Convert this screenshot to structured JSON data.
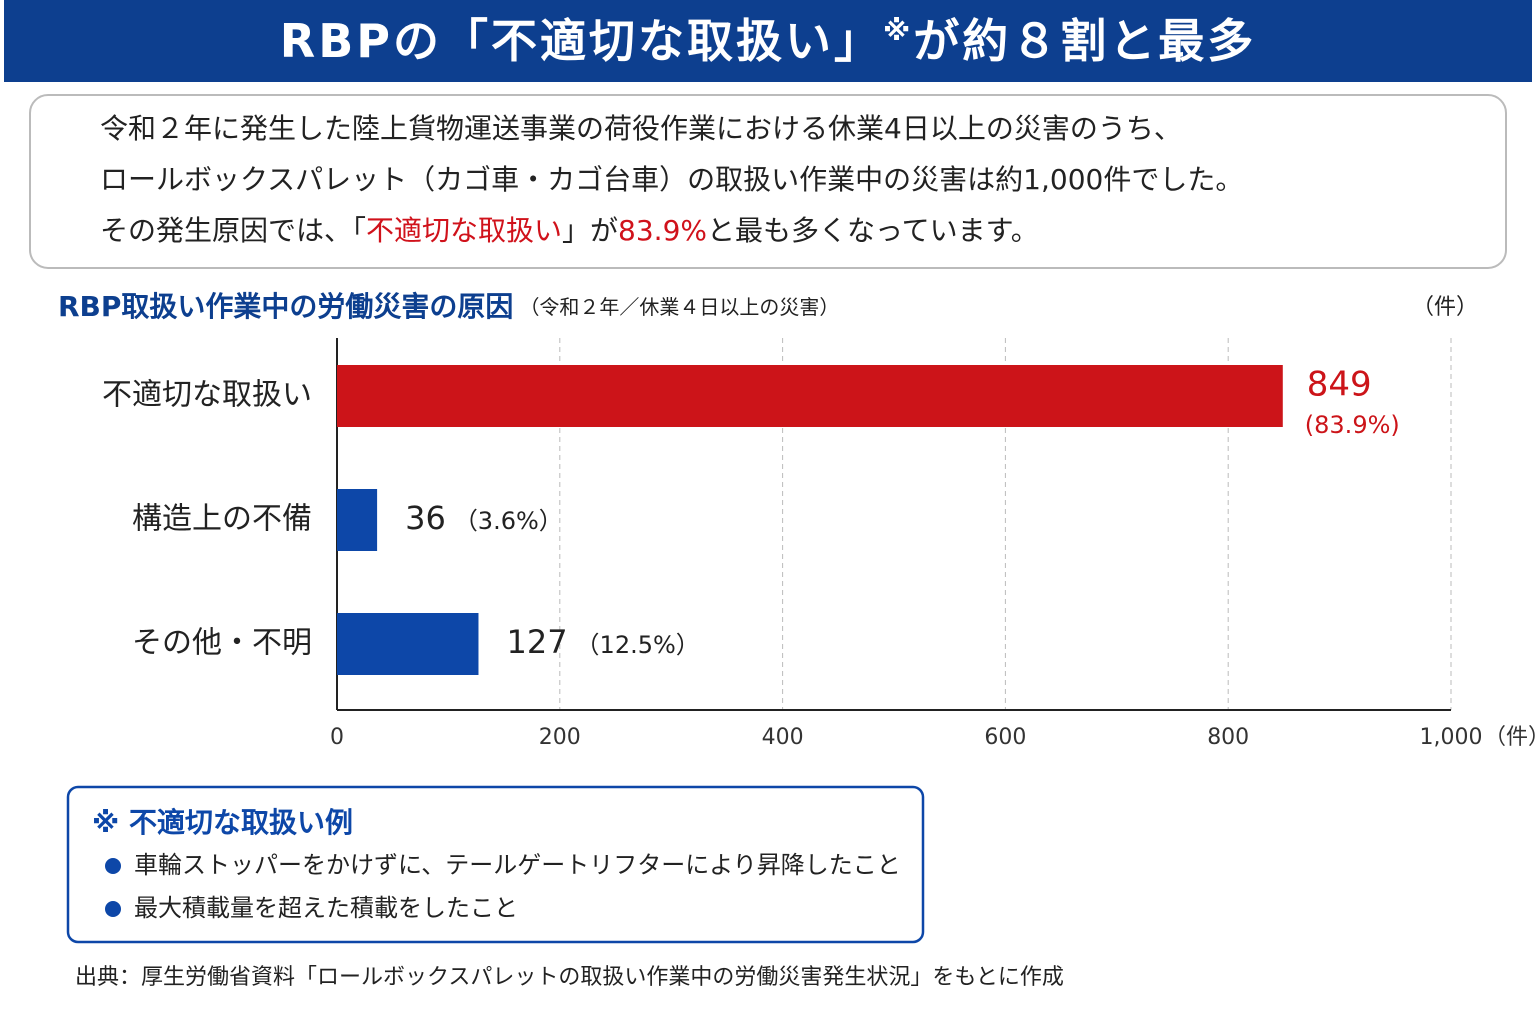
{
  "header": {
    "title": "RBPの「不適切な取扱い」",
    "title_mark": "※",
    "title_rest": "が約８割と最多"
  },
  "intro": {
    "lines": [
      [
        {
          "text": "令和２年に発生した陸上貨物運送事業の荷役作業における休業4日以上の災害のうち、"
        }
      ],
      [
        {
          "text": "ロールボックスパレット（カゴ車・カゴ台車）の取扱い作業中の災害は約1,000件でした。"
        }
      ],
      [
        {
          "text": "その発生原因では、「"
        },
        {
          "text": "不適切な取扱い",
          "red": true
        },
        {
          "text": "」が"
        },
        {
          "text": "83.9%",
          "red": true
        },
        {
          "text": "と最も多くなっています。"
        }
      ]
    ]
  },
  "chart_data": {
    "type": "hbar",
    "title": "RBP取扱い作業中の労働災害の原因",
    "subtitle": "（令和２年／休業４日以上の災害）",
    "unit_label": "（件）",
    "xlabel": "（件）",
    "categories": [
      "不適切な取扱い",
      "構造上の不備",
      "その他・不明"
    ],
    "values": [
      849,
      36,
      127
    ],
    "percent_labels": [
      "(83.9%)",
      "（3.6%）",
      "（12.5%）"
    ],
    "colors": [
      "#cc1419",
      "#0d47a8",
      "#0d47a8"
    ],
    "xlim": [
      0,
      1000
    ],
    "xticks": [
      0,
      200,
      400,
      600,
      800,
      {
        "value": 1000,
        "label": "1,000"
      }
    ],
    "grid": true
  },
  "note": {
    "title": "※ 不適切な取扱い例",
    "items": [
      "車輪ストッパーをかけずに、テールゲートリフターにより昇降したこと",
      "最大積載量を超えた積載をしたこと"
    ]
  },
  "source": "出典：厚生労働省資料「ロールボックスパレットの取扱い作業中の労働災害発生状況」をもとに作成"
}
